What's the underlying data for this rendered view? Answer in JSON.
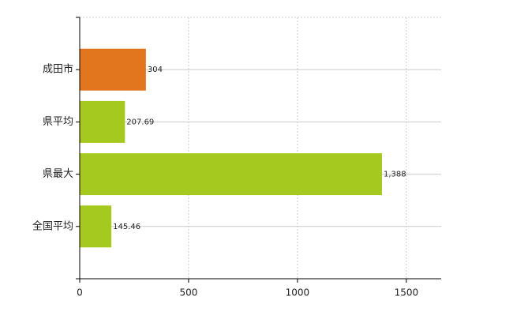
{
  "chart_data": {
    "type": "hbar",
    "categories": [
      "成田市",
      "県平均",
      "県最大",
      "全国平均"
    ],
    "values": [
      304,
      207.69,
      1388,
      145.46
    ],
    "value_labels": [
      "304",
      "207.69",
      "1,388",
      "145.46"
    ],
    "colors": [
      "#e2761f",
      "#a6c91f",
      "#a6c91f",
      "#a6c91f"
    ],
    "xlim": [
      0,
      1660
    ],
    "xticks": [
      0,
      500,
      1000,
      1500
    ],
    "grid": true
  }
}
